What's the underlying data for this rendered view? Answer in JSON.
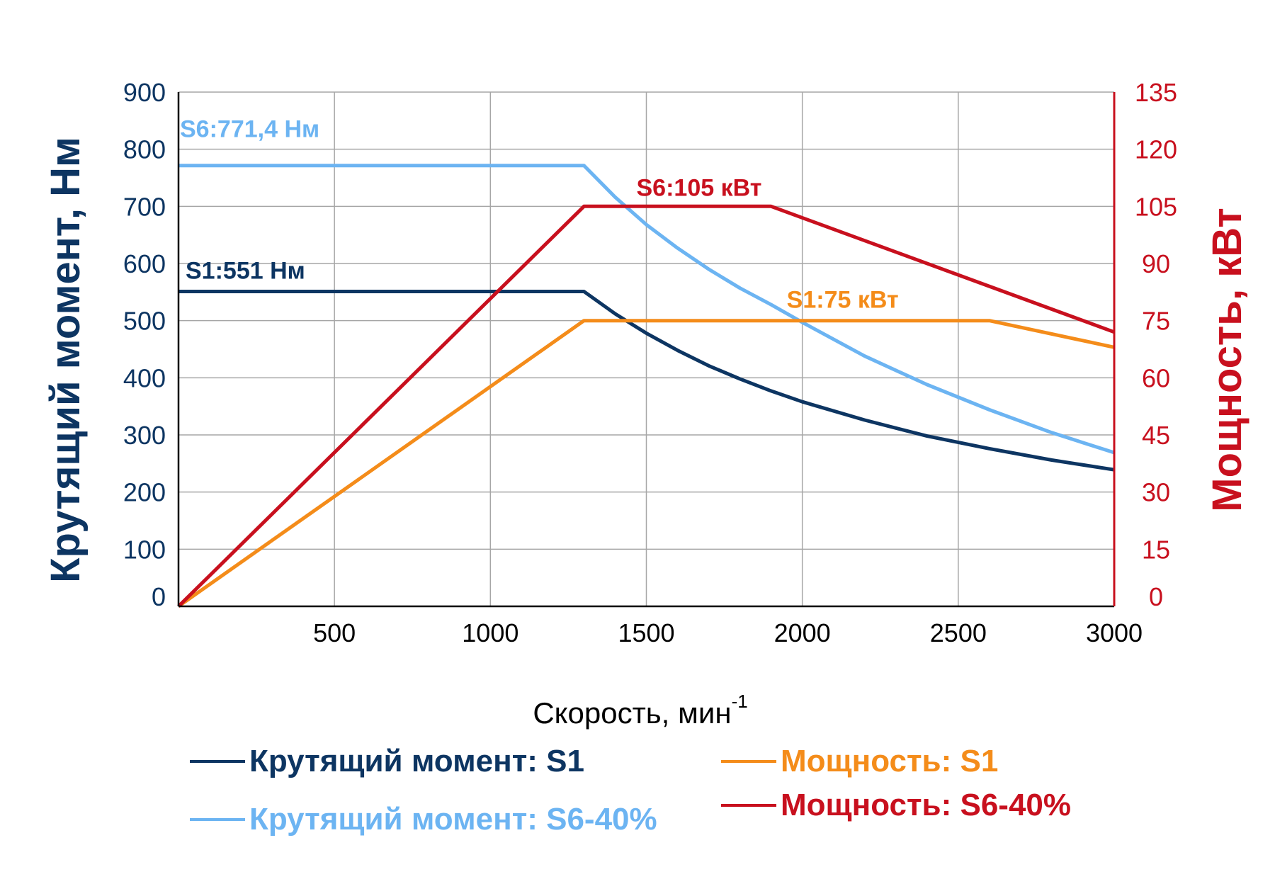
{
  "chart_data": {
    "type": "line",
    "xlabel": "Скорость, мин",
    "xlabel_sup": "-1",
    "ylabel_left": "Крутящий момент, Нм",
    "ylabel_right": "Мощность, кВт",
    "xlim": [
      0,
      3000
    ],
    "ylim_left": [
      0,
      900
    ],
    "ylim_right": [
      0,
      135
    ],
    "x_ticks": [
      "500",
      "1000",
      "1500",
      "2000",
      "2500",
      "3000"
    ],
    "y_ticks_left": [
      "0",
      "100",
      "200",
      "300",
      "400",
      "500",
      "600",
      "700",
      "800",
      "900"
    ],
    "y_ticks_right": [
      "0",
      "15",
      "30",
      "45",
      "60",
      "75",
      "90",
      "105",
      "120",
      "135"
    ],
    "grid": true,
    "legend_position": "bottom",
    "series": [
      {
        "name": "Крутящий момент: S1",
        "axis": "left",
        "color": "#0d3562",
        "x": [
          0,
          1300,
          1400,
          1500,
          1600,
          1700,
          1800,
          1900,
          2000,
          2200,
          2400,
          2600,
          2800,
          3000
        ],
        "y": [
          551,
          551,
          512,
          478,
          448,
          421,
          398,
          377,
          358,
          326,
          298,
          276,
          256,
          239
        ]
      },
      {
        "name": "Крутящий момент: S6-40%",
        "axis": "left",
        "color": "#6cb4f2",
        "x": [
          0,
          1300,
          1400,
          1500,
          1600,
          1700,
          1800,
          1900,
          2000,
          2200,
          2400,
          2600,
          2800,
          3000
        ],
        "y": [
          771.4,
          771.4,
          716,
          668,
          627,
          590,
          557,
          528,
          497,
          438,
          388,
          344,
          304,
          269
        ]
      },
      {
        "name": "Мощность: S1",
        "axis": "right",
        "color": "#f48c1a",
        "x": [
          0,
          1300,
          2600,
          3000
        ],
        "y": [
          0,
          75,
          75,
          68
        ]
      },
      {
        "name": "Мощность: S6-40%",
        "axis": "right",
        "color": "#c8101e",
        "x": [
          0,
          1300,
          1900,
          3000
        ],
        "y": [
          0,
          105,
          105,
          72
        ]
      }
    ],
    "annotations": [
      {
        "text": "S6:771,4 Нм",
        "color": "#6cb4f2",
        "x": 0,
        "y": 771.4,
        "axis": "left"
      },
      {
        "text": "S1:551 Нм",
        "color": "#0d3562",
        "x": 0,
        "y": 551,
        "axis": "left"
      },
      {
        "text": "S6:105 кВт",
        "color": "#c8101e",
        "x": 1500,
        "y": 105,
        "axis": "right"
      },
      {
        "text": "S1:75 кВт",
        "color": "#f48c1a",
        "x": 2000,
        "y": 75,
        "axis": "right"
      }
    ]
  }
}
